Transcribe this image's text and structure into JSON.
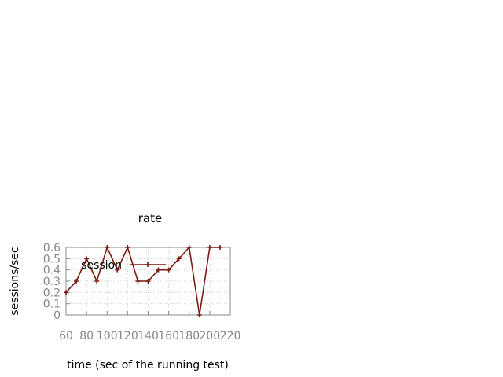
{
  "chart_data": {
    "type": "line",
    "title": "rate",
    "xlabel": "time (sec of the running test)",
    "ylabel": "sessions/sec",
    "xlim": [
      60,
      220
    ],
    "ylim": [
      0,
      0.6
    ],
    "x_ticks": [
      "60",
      "80",
      "100",
      "120",
      "140",
      "160",
      "180",
      "200",
      "220"
    ],
    "y_ticks": [
      "0",
      "0.1",
      "0.2",
      "0.3",
      "0.4",
      "0.5",
      "0.6"
    ],
    "grid": true,
    "legend_position": "inside-top",
    "series": [
      {
        "name": "session",
        "color": "#7a1a10",
        "x": [
          60,
          70,
          80,
          90,
          100,
          110,
          120,
          130,
          140,
          150,
          160,
          170,
          180,
          190,
          200,
          210
        ],
        "y": [
          0.2,
          0.3,
          0.5,
          0.3,
          0.6,
          0.4,
          0.6,
          0.3,
          0.3,
          0.4,
          0.4,
          0.5,
          0.6,
          0.0,
          0.6,
          0.6
        ]
      }
    ]
  }
}
